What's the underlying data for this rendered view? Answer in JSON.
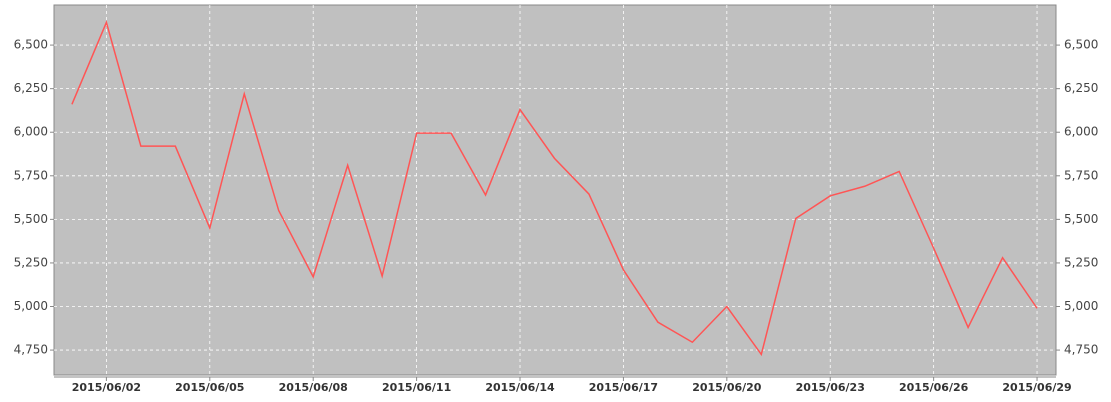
{
  "chart_data": {
    "type": "line",
    "x": [
      "2015/06/01",
      "2015/06/02",
      "2015/06/03",
      "2015/06/04",
      "2015/06/05",
      "2015/06/06",
      "2015/06/07",
      "2015/06/08",
      "2015/06/09",
      "2015/06/10",
      "2015/06/11",
      "2015/06/12",
      "2015/06/13",
      "2015/06/14",
      "2015/06/15",
      "2015/06/16",
      "2015/06/17",
      "2015/06/18",
      "2015/06/19",
      "2015/06/20",
      "2015/06/21",
      "2015/06/22",
      "2015/06/23",
      "2015/06/24",
      "2015/06/25",
      "2015/06/26",
      "2015/06/27",
      "2015/06/28",
      "2015/06/29"
    ],
    "series": [
      {
        "color": "#ff5555",
        "values": [
          6160,
          6630,
          5920,
          5920,
          5450,
          6220,
          5550,
          5170,
          5810,
          5175,
          5995,
          5995,
          5640,
          6130,
          5850,
          5645,
          5210,
          4910,
          4795,
          5000,
          4725,
          5505,
          5635,
          5690,
          5775,
          5335,
          4880,
          5280,
          4990
        ]
      }
    ],
    "ylim": [
      4607,
      6730
    ],
    "yticks": [
      {
        "value": 4750,
        "label": "4,750"
      },
      {
        "value": 5000,
        "label": "5,000"
      },
      {
        "value": 5250,
        "label": "5,250"
      },
      {
        "value": 5500,
        "label": "5,500"
      },
      {
        "value": 5750,
        "label": "5,750"
      },
      {
        "value": 6000,
        "label": "6,000"
      },
      {
        "value": 6250,
        "label": "6,250"
      },
      {
        "value": 6500,
        "label": "6,500"
      }
    ],
    "xticks": [
      "2015/06/02",
      "2015/06/05",
      "2015/06/08",
      "2015/06/11",
      "2015/06/14",
      "2015/06/17",
      "2015/06/20",
      "2015/06/23",
      "2015/06/26",
      "2015/06/29"
    ],
    "grid": true,
    "background": "#c0c0c0"
  }
}
